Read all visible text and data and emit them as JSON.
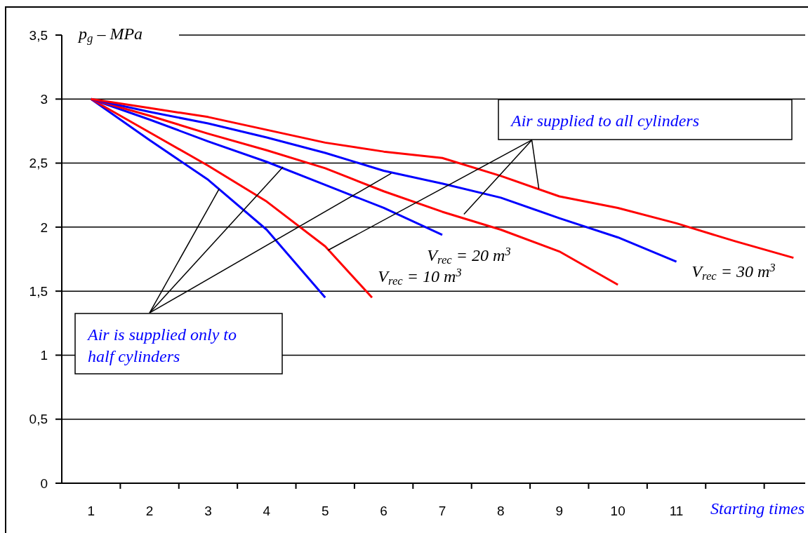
{
  "chart_data": {
    "type": "line",
    "ylabel": "p$_{g}$ – MPa",
    "xlabel": "Starting times",
    "xlim": [
      0.5,
      13.2
    ],
    "xticks": [
      1,
      2,
      3,
      4,
      5,
      6,
      7,
      8,
      9,
      10,
      11,
      {
        "value": 1.5,
        "label": null
      },
      {
        "value": 2.5,
        "label": null
      },
      {
        "value": 3.5,
        "label": null
      },
      {
        "value": 4.5,
        "label": null
      },
      {
        "value": 5.5,
        "label": null
      },
      {
        "value": 6.5,
        "label": null
      },
      {
        "value": 7.5,
        "label": null
      },
      {
        "value": 8.5,
        "label": null
      },
      {
        "value": 9.5,
        "label": null
      },
      {
        "value": 10.5,
        "label": null
      },
      {
        "value": 11.5,
        "label": null
      },
      {
        "value": 12.5,
        "label": null
      }
    ],
    "ylim": [
      0,
      3.5
    ],
    "yticks": [
      0,
      {
        "value": 0.5,
        "label": "0,5"
      },
      1,
      {
        "value": 1.5,
        "label": "1,5"
      },
      2,
      {
        "value": 2.5,
        "label": "2,5"
      },
      3,
      {
        "value": 3.5,
        "label": "3,5"
      }
    ],
    "grid": "y",
    "marker": "none",
    "line_style": "solid",
    "series": [
      {
        "color": "#0000ff",
        "x": [
          1,
          2,
          3,
          4,
          5
        ],
        "values": [
          3,
          2.68,
          2.37,
          1.98,
          1.45
        ]
      },
      {
        "color": "#ff0000",
        "x": [
          1,
          2,
          3,
          4,
          5,
          5.8
        ],
        "values": [
          3,
          2.74,
          2.48,
          2.2,
          1.85,
          1.45
        ]
      },
      {
        "color": "#0000ff",
        "x": [
          1,
          2,
          3,
          4,
          5,
          6,
          7
        ],
        "values": [
          3,
          2.84,
          2.67,
          2.51,
          2.33,
          2.15,
          1.94
        ]
      },
      {
        "color": "#ff0000",
        "x": [
          1,
          2,
          3,
          4,
          5,
          6,
          7,
          8,
          9,
          10
        ],
        "values": [
          3,
          2.87,
          2.73,
          2.6,
          2.46,
          2.28,
          2.12,
          1.98,
          1.81,
          1.55
        ]
      },
      {
        "color": "#0000ff",
        "x": [
          1,
          2,
          3,
          4,
          5,
          6,
          7,
          8,
          9,
          10,
          11
        ],
        "values": [
          3,
          2.9,
          2.81,
          2.7,
          2.58,
          2.44,
          2.34,
          2.23,
          2.07,
          1.92,
          1.73
        ]
      },
      {
        "color": "#ff0000",
        "x": [
          1,
          2,
          3,
          4,
          5,
          6,
          7,
          8,
          9,
          10,
          11,
          12,
          13
        ],
        "values": [
          3,
          2.93,
          2.86,
          2.76,
          2.66,
          2.59,
          2.54,
          2.4,
          2.24,
          2.15,
          2.03,
          1.89,
          1.76
        ]
      }
    ],
    "annotations": [
      {
        "text": "Air supplied to all cylinders",
        "x": 8.65,
        "y": 2.3
      },
      {
        "text": "Air is supplied only to half cylinders",
        "x": 3.19,
        "y": 2.3
      },
      "V$_{rec}$ = 10 m$^{3}$",
      "V$_{rec}$ = 20 m$^{3}$",
      "V$_{rec}$ = 30 m$^{3}$"
    ]
  }
}
